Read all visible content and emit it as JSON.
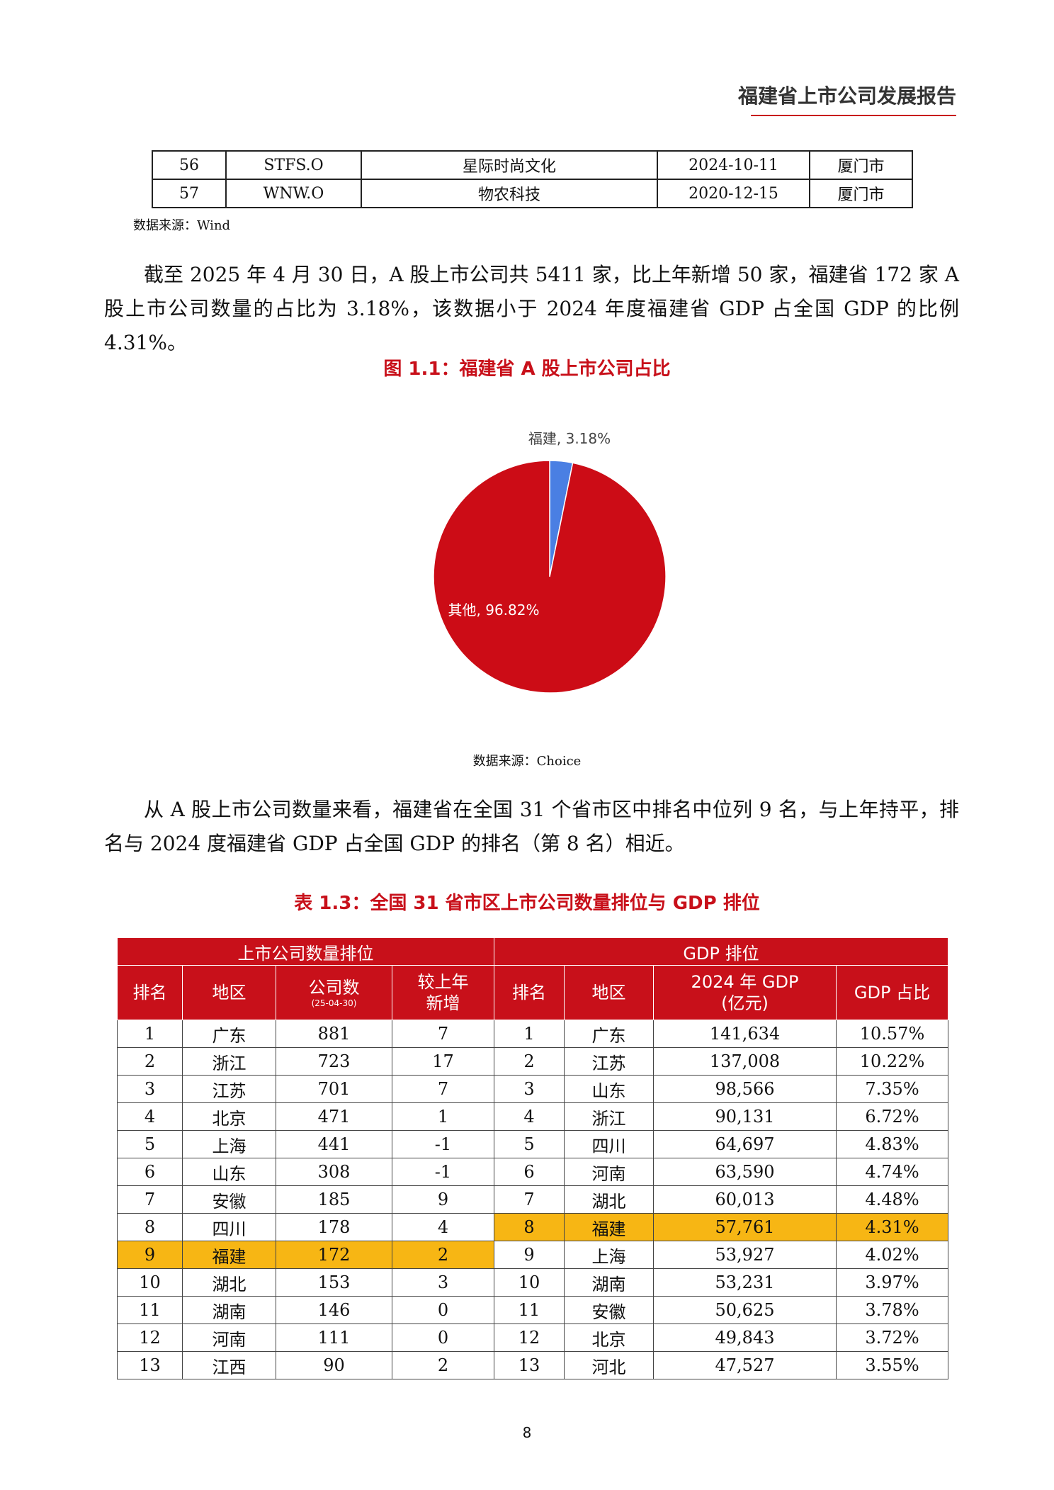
{
  "header": {
    "title": "福建省上市公司发展报告"
  },
  "top_table": {
    "rows": [
      [
        "56",
        "STFS.O",
        "星际时尚文化",
        "2024-10-11",
        "厦门市"
      ],
      [
        "57",
        "WNW.O",
        "物农科技",
        "2020-12-15",
        "厦门市"
      ]
    ],
    "source": "数据来源：Wind"
  },
  "paragraphs": [
    "截至 2025 年 4 月 30 日，A 股上市公司共 5411 家，比上年新增 50 家，福建省 172 家 A 股上市公司数量的占比为 3.18%，该数据小于 2024 年度福建省 GDP 占全国 GDP 的比例 4.31%。",
    "从 A 股上市公司数量来看，福建省在全国 31 个省市区中排名中位列 9 名，与上年持平，排名与 2024 度福建省 GDP 占全国 GDP 的排名（第 8 名）相近。"
  ],
  "figure": {
    "caption": "图 1.1：福建省 A 股上市公司占比",
    "source": "数据来源：Choice"
  },
  "chart_data": {
    "type": "pie",
    "values": [
      3.18,
      96.82
    ],
    "value_labels": [
      "福建, 3.18%",
      "其他, 96.82%"
    ],
    "colors": [
      "#4a7fe3",
      "#cc0c16"
    ]
  },
  "table": {
    "caption": "表 1.3：全国 31 省市区上市公司数量排位与 GDP 排位",
    "group_headers": [
      "上市公司数量排位",
      "GDP 排位"
    ],
    "headers": [
      [
        "排名"
      ],
      [
        "地区"
      ],
      [
        "公司数",
        "(25-04-30)"
      ],
      [
        "较上年",
        "新增"
      ],
      [
        "排名"
      ],
      [
        "地区"
      ],
      [
        "2024 年 GDP",
        "(亿元)"
      ],
      [
        "GDP 占比"
      ]
    ],
    "rows": [
      [
        "1",
        "广东",
        "881",
        "7",
        "1",
        "广东",
        "141,634",
        "10.57%"
      ],
      [
        "2",
        "浙江",
        "723",
        "17",
        "2",
        "江苏",
        "137,008",
        "10.22%"
      ],
      [
        "3",
        "江苏",
        "701",
        "7",
        "3",
        "山东",
        "98,566",
        "7.35%"
      ],
      [
        "4",
        "北京",
        "471",
        "1",
        "4",
        "浙江",
        "90,131",
        "6.72%"
      ],
      [
        "5",
        "上海",
        "441",
        "-1",
        "5",
        "四川",
        "64,697",
        "4.83%"
      ],
      [
        "6",
        "山东",
        "308",
        "-1",
        "6",
        "河南",
        "63,590",
        "4.74%"
      ],
      [
        "7",
        "安徽",
        "185",
        "9",
        "7",
        "湖北",
        "60,013",
        "4.48%"
      ],
      [
        "8",
        "四川",
        "178",
        "4",
        "8",
        "福建",
        "57,761",
        "4.31%"
      ],
      [
        "9",
        "福建",
        "172",
        "2",
        "9",
        "上海",
        "53,927",
        "4.02%"
      ],
      [
        "10",
        "湖北",
        "153",
        "3",
        "10",
        "湖南",
        "53,231",
        "3.97%"
      ],
      [
        "11",
        "湖南",
        "146",
        "0",
        "11",
        "安徽",
        "50,625",
        "3.78%"
      ],
      [
        "12",
        "河南",
        "111",
        "0",
        "12",
        "北京",
        "49,843",
        "3.72%"
      ],
      [
        "13",
        "江西",
        "90",
        "2",
        "13",
        "河北",
        "47,527",
        "3.55%"
      ]
    ],
    "highlight_rows": {
      "left": 8,
      "right": 7
    }
  },
  "page_number": "8"
}
